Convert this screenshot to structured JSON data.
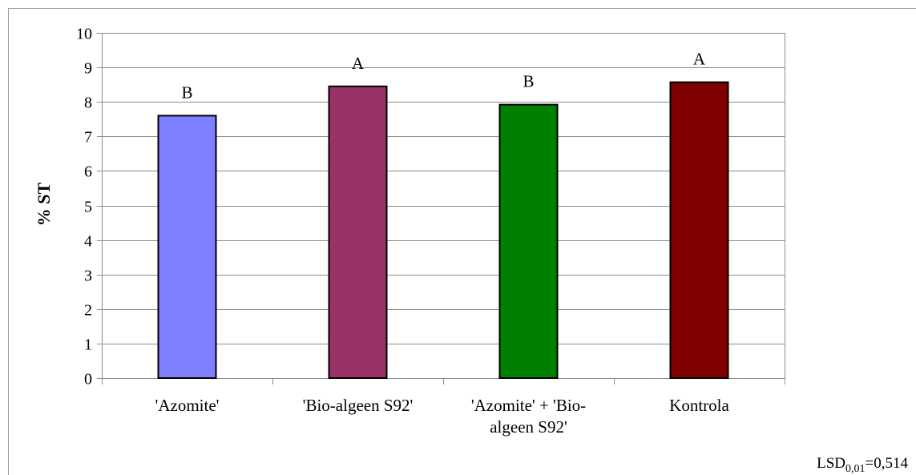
{
  "chart_data": {
    "type": "bar",
    "categories": [
      [
        "'Azomite'"
      ],
      [
        "'Bio-algeen S92'"
      ],
      [
        "'Azomite' + 'Bio-",
        "algeen S92'"
      ],
      [
        "Kontrola"
      ]
    ],
    "values": [
      7.6,
      8.45,
      7.92,
      8.57
    ],
    "significance_letters": [
      "B",
      "A",
      "B",
      "A"
    ],
    "colors": [
      "#7f80ff",
      "#993366",
      "#008000",
      "#800000"
    ],
    "title": "",
    "xlabel": "",
    "ylabel": "% ST",
    "ylim": [
      0,
      10
    ],
    "yticks": [
      0,
      1,
      2,
      3,
      4,
      5,
      6,
      7,
      8,
      9,
      10
    ],
    "grid": true,
    "legend": "none",
    "annotation": {
      "lsd_base": "LSD",
      "lsd_sub": "0,01",
      "lsd_value": "=0,514"
    }
  }
}
